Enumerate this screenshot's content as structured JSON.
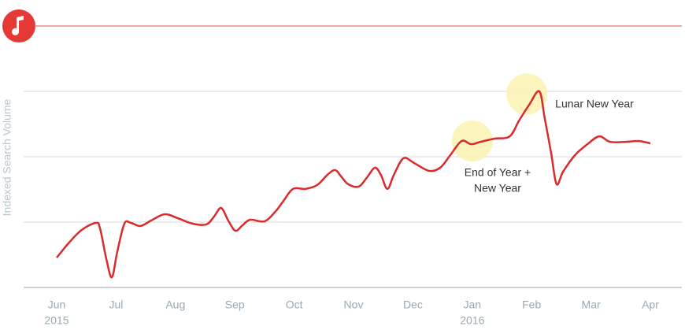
{
  "chart_data": {
    "type": "line",
    "y_axis_label": "Indexed Search Volume",
    "x": [
      0.0,
      0.21,
      0.42,
      0.66,
      0.73,
      0.84,
      0.93,
      1.02,
      1.14,
      1.25,
      1.41,
      1.59,
      1.82,
      2.04,
      2.29,
      2.52,
      2.65,
      2.77,
      2.89,
      3.01,
      3.13,
      3.26,
      3.5,
      3.69,
      3.82,
      3.98,
      4.19,
      4.39,
      4.56,
      4.69,
      4.79,
      4.91,
      5.09,
      5.23,
      5.36,
      5.46,
      5.57,
      5.68,
      5.84,
      6.02,
      6.27,
      6.46,
      6.63,
      6.82,
      6.98,
      7.14,
      7.37,
      7.63,
      7.79,
      7.96,
      8.13,
      8.22,
      8.33,
      8.42,
      8.53,
      8.73,
      8.94,
      9.14,
      9.32,
      9.59,
      9.81,
      10.0
    ],
    "series": [
      {
        "color": "#d92b2b",
        "values": [
          11.4,
          17.2,
          22.0,
          24.7,
          22.6,
          10.5,
          3.9,
          13.6,
          24.4,
          24.7,
          23.5,
          25.6,
          28.0,
          26.5,
          24.4,
          24.1,
          27.1,
          30.4,
          25.6,
          21.7,
          23.8,
          25.9,
          25.3,
          29.2,
          33.1,
          37.7,
          37.7,
          39.2,
          43.1,
          44.9,
          42.5,
          39.5,
          38.6,
          42.2,
          45.8,
          43.1,
          37.7,
          43.1,
          49.4,
          47.6,
          44.6,
          45.8,
          50.6,
          56.0,
          54.8,
          55.7,
          56.9,
          57.8,
          63.9,
          69.9,
          75.0,
          64.8,
          51.2,
          39.5,
          44.3,
          50.6,
          54.8,
          57.8,
          55.7,
          55.7,
          56.0,
          55.1
        ]
      }
    ],
    "xlim": [
      0,
      10
    ],
    "xticks": [
      {
        "value": 0,
        "label": "Jun"
      },
      {
        "value": 1,
        "label": "Jul"
      },
      {
        "value": 2,
        "label": "Aug"
      },
      {
        "value": 3,
        "label": "Sep"
      },
      {
        "value": 4,
        "label": "Oct"
      },
      {
        "value": 5,
        "label": "Nov"
      },
      {
        "value": 6,
        "label": "Dec"
      },
      {
        "value": 7,
        "label": "Jan"
      },
      {
        "value": 8,
        "label": "Feb"
      },
      {
        "value": 9,
        "label": "Mar"
      },
      {
        "value": 10,
        "label": "Apr"
      }
    ],
    "x_sublabels": [
      {
        "value": 0,
        "label": "2015"
      },
      {
        "value": 7,
        "label": "2016"
      }
    ],
    "ylim": [
      0,
      100
    ],
    "yticks": [
      0,
      25,
      50,
      75
    ],
    "grid": true,
    "annotations": [
      {
        "x": 7.0,
        "y": 56,
        "lines": [
          "End of Year +",
          "New Year"
        ]
      },
      {
        "x": 7.92,
        "y": 74,
        "lines": [
          "Lunar New Year"
        ]
      }
    ]
  }
}
